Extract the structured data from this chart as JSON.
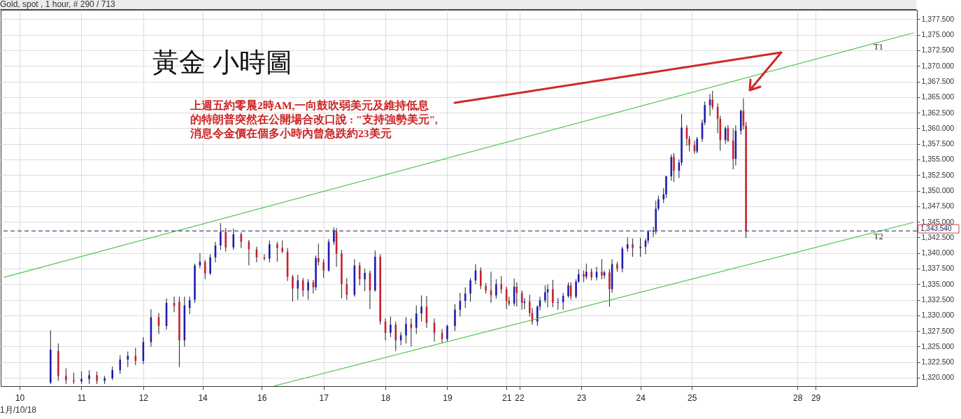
{
  "chart_data": {
    "type": "candlestick",
    "title": "黃金 小時圖",
    "annotations": [
      "Gold, spot , 1 hour, # 290 / 713",
      "上週五約零晨2時AM,一向鼓吹弱美元及維持低息的特朗普突然在公開場合改口說 : \"支持強勢美元\",消息令金價在個多小時內曾急跌約23美元",
      "1月/10/18"
    ],
    "categories": [
      null,
      null,
      null,
      null,
      null,
      null,
      "10",
      null,
      null,
      null,
      null,
      null,
      null,
      null,
      null,
      null,
      null,
      null,
      null,
      null,
      null,
      null,
      null,
      null,
      null,
      null,
      null,
      null,
      null,
      null,
      "11",
      null,
      null,
      null,
      null,
      null,
      null,
      null,
      null,
      null,
      null,
      null,
      null,
      null,
      null,
      null,
      null,
      null,
      null,
      null,
      null,
      null,
      null,
      null,
      "12",
      null,
      null,
      null,
      null,
      null,
      null,
      null,
      null,
      null,
      null,
      null,
      null,
      null,
      null,
      null,
      null,
      null,
      null,
      null,
      null,
      null,
      null,
      "14",
      null,
      null,
      null,
      null,
      null,
      null,
      null,
      null,
      null,
      null,
      null,
      null,
      null,
      null,
      null,
      null,
      null,
      null,
      null,
      null,
      null,
      null,
      "16",
      null,
      null,
      null,
      null,
      null,
      null,
      null,
      null,
      null,
      null,
      null,
      null,
      null,
      null,
      null,
      null,
      null,
      null,
      null,
      null,
      null,
      null,
      null,
      "17",
      null,
      null,
      null,
      null,
      null,
      null,
      null,
      null,
      null,
      null,
      null,
      null,
      null,
      null,
      null,
      null,
      null,
      null,
      null,
      null,
      null,
      null,
      null,
      "18",
      null,
      null,
      null,
      null,
      null,
      null,
      null,
      null,
      null,
      null,
      null,
      null,
      null,
      null,
      null,
      null,
      null,
      null,
      null,
      null,
      null,
      null,
      null,
      "19",
      null,
      null,
      null,
      null,
      null,
      null,
      null,
      null,
      null,
      null,
      null,
      null,
      null,
      null,
      null,
      null,
      null,
      null,
      null,
      null,
      null,
      null,
      "21",
      null,
      null,
      null,
      null,
      "22",
      null,
      null,
      null,
      null,
      null,
      null,
      null,
      null,
      null,
      null,
      null,
      null,
      null,
      null,
      null,
      null,
      null,
      null,
      null,
      null,
      null,
      null,
      null,
      "23",
      null,
      null,
      null,
      null,
      null,
      null,
      null,
      null,
      null,
      null,
      null,
      null,
      null,
      null,
      null,
      null,
      null,
      null,
      null,
      null,
      null,
      null,
      "24",
      null,
      null,
      null,
      null,
      null,
      null,
      null,
      null,
      null,
      null,
      null,
      null,
      null,
      null,
      null,
      null,
      null,
      null,
      null,
      "25",
      null,
      null,
      null,
      null,
      null,
      null,
      null,
      null,
      null,
      null,
      null,
      null,
      null,
      null,
      null,
      null,
      null,
      null,
      null,
      null,
      null,
      null,
      null,
      null,
      null,
      null,
      null,
      null,
      null,
      null,
      null,
      null,
      null,
      null,
      null,
      null,
      null,
      null,
      null,
      null,
      "28",
      null,
      null,
      null,
      null,
      null,
      null,
      "29",
      null,
      null,
      null,
      null,
      null,
      null,
      null,
      null,
      null,
      null,
      null,
      null,
      null,
      null,
      null,
      null,
      null,
      null,
      null,
      null,
      null,
      null,
      null,
      null,
      null,
      null,
      null,
      null,
      null,
      null,
      null,
      null,
      null,
      null,
      null,
      null,
      null,
      null
    ],
    "ohlc": [
      null,
      null,
      null,
      null,
      null,
      null,
      null,
      null,
      null,
      null,
      null,
      null,
      null,
      null,
      null,
      null,
      null,
      null,
      [
        1319.2,
        1327.6,
        1319.0,
        1324.5
      ],
      null,
      null,
      [
        1324.3,
        1325.5,
        1319.5,
        1320.3
      ],
      null,
      null,
      [
        1320.3,
        1321.5,
        1319.0,
        1319.6
      ],
      null,
      null,
      [
        1319.6,
        1320.8,
        1319.0,
        1319.4
      ],
      null,
      null,
      [
        1319.4,
        1321.0,
        1319.0,
        1319.8
      ],
      null,
      null,
      [
        1319.8,
        1321.2,
        1319.0,
        1320.4
      ],
      null,
      null,
      [
        1320.4,
        1321.0,
        1319.0,
        1319.5
      ],
      null,
      null,
      [
        1319.5,
        1320.3,
        1319.0,
        1319.9
      ],
      null,
      null,
      [
        1319.9,
        1321.8,
        1319.6,
        1321.2
      ],
      null,
      null,
      [
        1321.2,
        1323.6,
        1320.6,
        1322.9
      ],
      null,
      null,
      [
        1322.9,
        1324.2,
        1321.7,
        1323.5
      ],
      null,
      null,
      [
        1323.5,
        1324.8,
        1322.0,
        1322.7
      ],
      null,
      null,
      [
        1322.7,
        1326.5,
        1322.2,
        1325.7
      ],
      null,
      null,
      [
        1325.7,
        1331.0,
        1325.0,
        1329.7
      ],
      null,
      null,
      [
        1329.7,
        1330.4,
        1327.0,
        1328.3
      ],
      null,
      null,
      [
        1328.3,
        1332.7,
        1327.7,
        1332.0
      ],
      null,
      null,
      [
        1332.0,
        1333.0,
        1330.5,
        1331.5
      ],
      null,
      [
        1332.2,
        1333.0,
        1321.7,
        1326.0
      ],
      null,
      [
        1326.0,
        1333.0,
        1325.0,
        1331.6
      ],
      null,
      [
        1331.2,
        1333.0,
        1330.2,
        1332.4
      ],
      null,
      [
        1332.5,
        1338.3,
        1332.0,
        1338.0
      ],
      null,
      [
        1338.0,
        1340.0,
        1337.6,
        1338.6
      ],
      null,
      [
        1338.6,
        1338.9,
        1335.8,
        1336.7
      ],
      null,
      [
        1336.7,
        1339.8,
        1336.5,
        1339.3
      ],
      null,
      [
        1339.3,
        1341.8,
        1338.5,
        1341.2
      ],
      null,
      [
        1341.2,
        1344.8,
        1340.5,
        1343.4
      ],
      null,
      [
        1343.4,
        1344.0,
        1340.2,
        1340.9
      ],
      null,
      null,
      [
        1340.9,
        1343.9,
        1340.5,
        1343.0
      ],
      null,
      null,
      [
        1343.0,
        1343.3,
        1340.8,
        1341.8
      ],
      null,
      null,
      [
        1341.8,
        1342.1,
        1338.0,
        1340.6
      ],
      null,
      null,
      [
        1340.6,
        1341.0,
        1338.5,
        1339.3
      ],
      null,
      null,
      [
        1339.3,
        1339.8,
        1338.8,
        1339.1
      ],
      null,
      [
        1339.1,
        1342.0,
        1338.5,
        1341.4
      ],
      null,
      null,
      [
        1341.4,
        1341.8,
        1338.6,
        1340.8
      ],
      null,
      [
        1340.8,
        1342.0,
        1340.0,
        1340.2
      ],
      null,
      [
        1340.2,
        1340.8,
        1335.5,
        1336.2
      ],
      null,
      [
        1336.2,
        1336.5,
        1332.2,
        1334.3
      ],
      null,
      [
        1334.3,
        1336.5,
        1332.5,
        1335.6
      ],
      null,
      [
        1335.6,
        1336.0,
        1333.0,
        1334.0
      ],
      null,
      [
        1334.0,
        1335.8,
        1332.5,
        1335.3
      ],
      null,
      [
        1335.3,
        1335.7,
        1333.5,
        1334.5
      ],
      [
        1334.5,
        1339.6,
        1334.0,
        1339.2
      ],
      [
        1339.2,
        1341.5,
        1338.0,
        1338.5
      ],
      null,
      [
        1338.5,
        1339.0,
        1336.0,
        1337.2
      ],
      null,
      [
        1337.2,
        1342.2,
        1337.0,
        1341.8
      ],
      null,
      [
        1341.8,
        1344.1,
        1341.3,
        1343.5
      ],
      [
        1343.5,
        1344.0,
        1337.8,
        1339.9
      ],
      null,
      [
        1339.9,
        1340.5,
        1332.7,
        1335.0
      ],
      null,
      [
        1335.0,
        1336.0,
        1332.5,
        1333.3
      ],
      null,
      null,
      [
        1333.3,
        1339.0,
        1333.0,
        1338.0
      ],
      null,
      [
        1338.0,
        1338.5,
        1334.8,
        1335.8
      ],
      null,
      [
        1335.8,
        1337.5,
        1333.9,
        1336.8
      ],
      null,
      [
        1336.8,
        1337.2,
        1331.0,
        1334.0
      ],
      null,
      [
        1334.0,
        1340.4,
        1333.8,
        1339.4
      ],
      null,
      [
        1339.4,
        1339.8,
        1328.5,
        1329.0
      ],
      null,
      [
        1329.0,
        1329.5,
        1326.0,
        1327.2
      ],
      null,
      [
        1327.2,
        1329.8,
        1326.5,
        1328.5
      ],
      null,
      [
        1328.5,
        1329.0,
        1324.3,
        1326.0
      ],
      null,
      [
        1326.0,
        1327.3,
        1325.2,
        1326.8
      ],
      null,
      [
        1326.8,
        1329.7,
        1325.5,
        1328.6
      ],
      null,
      [
        1328.6,
        1329.5,
        1325.0,
        1328.0
      ],
      null,
      [
        1328.0,
        1331.6,
        1327.0,
        1330.3
      ],
      null,
      [
        1330.3,
        1333.2,
        1329.0,
        1331.4
      ],
      null,
      [
        1331.4,
        1333.1,
        1328.0,
        1328.8
      ],
      null,
      null,
      [
        1328.8,
        1329.5,
        1325.8,
        1327.2
      ],
      null,
      null,
      [
        1327.2,
        1327.8,
        1325.6,
        1326.2
      ],
      null,
      [
        1326.2,
        1328.5,
        1325.8,
        1328.3
      ],
      null,
      null,
      [
        1328.3,
        1331.8,
        1327.5,
        1330.9
      ],
      null,
      [
        1330.9,
        1333.6,
        1329.8,
        1332.3
      ],
      null,
      [
        1332.3,
        1334.5,
        1331.2,
        1333.5
      ],
      null,
      [
        1333.5,
        1336.0,
        1332.2,
        1335.6
      ],
      null,
      [
        1335.6,
        1338.2,
        1335.0,
        1337.2
      ],
      null,
      [
        1337.2,
        1337.7,
        1334.2,
        1334.7
      ],
      null,
      [
        1334.7,
        1335.2,
        1333.5,
        1334.0
      ],
      null,
      [
        1334.0,
        1337.0,
        1332.0,
        1333.2
      ],
      null,
      [
        1333.2,
        1335.8,
        1332.7,
        1335.0
      ],
      null,
      [
        1335.0,
        1336.3,
        1333.5,
        1334.2
      ],
      null,
      [
        1334.2,
        1334.6,
        1331.0,
        1332.3
      ],
      [
        1332.3,
        1333.0,
        1331.5,
        1331.9
      ],
      null,
      [
        1331.9,
        1335.9,
        1331.5,
        1334.6
      ],
      [
        1334.6,
        1335.3,
        1331.4,
        1333.6
      ],
      null,
      [
        1333.6,
        1334.0,
        1330.9,
        1332.0
      ],
      [
        1332.0,
        1332.8,
        1331.0,
        1332.2
      ],
      null,
      [
        1332.2,
        1333.3,
        1329.8,
        1330.4
      ],
      [
        1330.4,
        1331.2,
        1328.5,
        1329.0
      ],
      null,
      [
        1329.0,
        1331.6,
        1328.3,
        1331.4
      ],
      [
        1331.4,
        1333.0,
        1330.8,
        1332.4
      ],
      null,
      [
        1332.4,
        1334.8,
        1332.0,
        1333.7
      ],
      [
        1333.7,
        1335.0,
        1331.3,
        1334.2
      ],
      null,
      [
        1334.2,
        1335.7,
        1331.3,
        1332.0
      ],
      null,
      [
        1332.0,
        1332.8,
        1330.9,
        1332.1
      ],
      null,
      [
        1332.1,
        1333.6,
        1330.9,
        1333.1
      ],
      null,
      [
        1333.1,
        1335.3,
        1332.8,
        1334.8
      ],
      [
        1334.8,
        1335.3,
        1332.5,
        1333.0
      ],
      null,
      [
        1333.0,
        1335.8,
        1332.7,
        1335.4
      ],
      [
        1335.4,
        1337.4,
        1335.2,
        1336.6
      ],
      null,
      [
        1336.6,
        1337.2,
        1335.3,
        1336.2
      ],
      [
        1336.2,
        1338.3,
        1335.8,
        1337.0
      ],
      null,
      [
        1337.0,
        1337.5,
        1335.6,
        1336.1
      ],
      null,
      [
        1336.1,
        1337.8,
        1335.6,
        1337.0
      ],
      null,
      [
        1337.0,
        1339.0,
        1335.8,
        1336.4
      ],
      [
        1336.4,
        1337.2,
        1335.9,
        1336.9
      ],
      null,
      [
        1336.9,
        1337.4,
        1331.4,
        1334.2
      ],
      [
        1334.2,
        1339.0,
        1333.6,
        1338.2
      ],
      null,
      [
        1338.2,
        1338.6,
        1337.0,
        1337.5
      ],
      null,
      [
        1337.5,
        1341.0,
        1336.9,
        1340.7
      ],
      null,
      [
        1340.7,
        1342.5,
        1340.2,
        1341.4
      ],
      null,
      [
        1341.4,
        1342.3,
        1339.4,
        1340.8
      ],
      null,
      null,
      [
        1340.8,
        1342.4,
        1339.4,
        1341.0
      ],
      null,
      [
        1341.0,
        1342.3,
        1339.8,
        1342.0
      ],
      [
        1342.0,
        1343.6,
        1341.5,
        1343.4
      ],
      null,
      [
        1343.4,
        1344.2,
        1342.6,
        1343.6
      ],
      [
        1343.6,
        1348.4,
        1343.0,
        1347.1
      ],
      [
        1347.1,
        1349.2,
        1346.8,
        1348.6
      ],
      null,
      [
        1348.6,
        1350.4,
        1348.0,
        1349.4
      ],
      [
        1349.4,
        1352.4,
        1348.8,
        1352.3
      ],
      null,
      [
        1352.3,
        1355.8,
        1351.6,
        1355.4
      ],
      [
        1355.4,
        1356.0,
        1351.4,
        1353.2
      ],
      null,
      [
        1353.2,
        1355.0,
        1352.0,
        1354.5
      ],
      [
        1354.5,
        1362.3,
        1354.0,
        1360.1
      ],
      null,
      [
        1360.1,
        1360.5,
        1357.2,
        1358.3
      ],
      [
        1358.3,
        1358.8,
        1356.3,
        1357.3
      ],
      null,
      [
        1357.3,
        1358.0,
        1355.9,
        1356.3
      ],
      [
        1356.3,
        1358.6,
        1356.0,
        1358.3
      ],
      null,
      [
        1358.3,
        1361.4,
        1357.8,
        1360.9
      ],
      [
        1360.9,
        1364.3,
        1360.5,
        1363.7
      ],
      null,
      [
        1363.7,
        1365.5,
        1362.0,
        1364.6
      ],
      [
        1364.6,
        1366.0,
        1363.0,
        1363.4
      ],
      null,
      [
        1363.4,
        1364.0,
        1359.2,
        1361.5
      ],
      [
        1361.5,
        1362.0,
        1356.4,
        1358.1
      ],
      null,
      [
        1358.1,
        1360.3,
        1357.5,
        1360.0
      ],
      [
        1360.0,
        1360.5,
        1357.8,
        1358.0
      ],
      null,
      [
        1358.0,
        1360.0,
        1353.4,
        1355.1
      ],
      [
        1355.1,
        1360.5,
        1354.0,
        1359.6
      ],
      null,
      [
        1359.6,
        1363.0,
        1359.0,
        1362.8
      ],
      [
        1362.8,
        1364.8,
        1359.8,
        1360.4
      ],
      [
        1360.4,
        1361.0,
        1342.4,
        1343.54
      ],
      null,
      null,
      null,
      null,
      null,
      null,
      null,
      null,
      null,
      null,
      null,
      null,
      null,
      null,
      null,
      null,
      null,
      null,
      null,
      null,
      null,
      null,
      null,
      null,
      null,
      null,
      null,
      null,
      null,
      null,
      null,
      null,
      null,
      null,
      null,
      null,
      null,
      null,
      null,
      null,
      null,
      null,
      null,
      null,
      null,
      null,
      null,
      null,
      null,
      null,
      null,
      null,
      null,
      null,
      null,
      null,
      null,
      null,
      null,
      null,
      null,
      null,
      null,
      null,
      null
    ],
    "colors": [
      null,
      null,
      null,
      null,
      null,
      null,
      null,
      null,
      null,
      null,
      null,
      null,
      null,
      null,
      null,
      null,
      null,
      null,
      "#1c1cb4",
      null,
      null,
      "#c8202c",
      null,
      null,
      "#c8202c",
      null,
      null,
      "#c8202c",
      null,
      null,
      "#1c1cb4",
      null,
      null,
      "#1c1cb4",
      null,
      null,
      "#c8202c",
      null,
      null,
      "#1c1cb4",
      null,
      null,
      "#1c1cb4",
      null,
      null,
      "#1c1cb4",
      null,
      null,
      "#1c1cb4",
      null,
      null,
      "#c8202c",
      null,
      null,
      "#1c1cb4",
      null,
      null,
      "#1c1cb4",
      null,
      null,
      "#c8202c",
      null,
      null,
      "#1c1cb4",
      null,
      null,
      "#c8202c",
      null,
      "#c8202c",
      null,
      "#1c1cb4",
      null,
      "#1c1cb4",
      null,
      "#1c1cb4",
      null,
      "#1c1cb4",
      null,
      "#c8202c",
      null,
      "#1c1cb4",
      null,
      "#1c1cb4",
      null,
      "#1c1cb4",
      null,
      "#c8202c",
      null,
      null,
      "#1c1cb4",
      null,
      null,
      "#c8202c",
      null,
      null,
      "#c8202c",
      null,
      null,
      "#c8202c",
      null,
      null,
      "#c8202c",
      null,
      "#1c1cb4",
      null,
      null,
      "#c8202c",
      null,
      "#c8202c",
      null,
      "#c8202c",
      null,
      "#c8202c",
      null,
      "#1c1cb4",
      null,
      "#c8202c",
      null,
      "#1c1cb4",
      null,
      "#c8202c",
      "#1c1cb4",
      "#c8202c",
      null,
      "#c8202c",
      null,
      "#1c1cb4",
      null,
      "#1c1cb4",
      "#c8202c",
      null,
      "#c8202c",
      null,
      "#c8202c",
      null,
      null,
      "#1c1cb4",
      null,
      "#c8202c",
      null,
      "#1c1cb4",
      null,
      "#c8202c",
      null,
      "#1c1cb4",
      null,
      "#c8202c",
      null,
      "#c8202c",
      null,
      "#1c1cb4",
      null,
      "#c8202c",
      null,
      "#1c1cb4",
      null,
      "#1c1cb4",
      null,
      "#c8202c",
      null,
      "#1c1cb4",
      null,
      "#1c1cb4",
      null,
      "#c8202c",
      null,
      null,
      "#c8202c",
      null,
      null,
      "#c8202c",
      null,
      "#1c1cb4",
      null,
      null,
      "#1c1cb4",
      null,
      "#1c1cb4",
      null,
      "#1c1cb4",
      null,
      "#1c1cb4",
      null,
      "#1c1cb4",
      null,
      "#c8202c",
      null,
      "#c8202c",
      null,
      "#c8202c",
      null,
      "#1c1cb4",
      null,
      "#c8202c",
      null,
      "#c8202c",
      "#c8202c",
      null,
      "#1c1cb4",
      "#c8202c",
      null,
      "#c8202c",
      "#1c1cb4",
      null,
      "#c8202c",
      "#c8202c",
      null,
      "#1c1cb4",
      "#1c1cb4",
      null,
      "#1c1cb4",
      "#1c1cb4",
      null,
      "#c8202c",
      null,
      "#1c1cb4",
      null,
      "#1c1cb4",
      null,
      "#1c1cb4",
      "#c8202c",
      null,
      "#1c1cb4",
      "#1c1cb4",
      null,
      "#c8202c",
      "#1c1cb4",
      null,
      "#c8202c",
      null,
      "#1c1cb4",
      null,
      "#c8202c",
      "#1c1cb4",
      null,
      "#c8202c",
      "#1c1cb4",
      null,
      "#c8202c",
      null,
      "#1c1cb4",
      null,
      "#1c1cb4",
      null,
      "#c8202c",
      null,
      null,
      "#1c1cb4",
      null,
      "#1c1cb4",
      "#1c1cb4",
      null,
      "#1c1cb4",
      "#1c1cb4",
      "#1c1cb4",
      null,
      "#1c1cb4",
      "#1c1cb4",
      null,
      "#1c1cb4",
      "#c8202c",
      null,
      "#1c1cb4",
      "#1c1cb4",
      null,
      "#c8202c",
      "#c8202c",
      null,
      "#c8202c",
      "#1c1cb4",
      null,
      "#1c1cb4",
      "#1c1cb4",
      null,
      "#1c1cb4",
      "#c8202c",
      null,
      "#c8202c",
      "#c8202c",
      null,
      "#1c1cb4",
      "#c8202c",
      null,
      "#c8202c",
      "#1c1cb4",
      null,
      "#1c1cb4",
      "#c8202c",
      "#c8202c",
      null,
      null,
      null,
      null,
      null,
      null,
      null,
      null,
      null,
      null,
      null,
      null,
      null,
      null,
      null,
      null,
      null,
      null,
      null,
      null,
      null,
      null,
      null,
      null,
      null,
      null,
      null,
      null,
      null,
      null,
      null,
      null,
      null,
      null,
      null,
      null,
      null,
      null,
      null,
      null,
      null,
      null,
      null,
      null,
      null,
      null,
      null,
      null,
      null,
      null,
      null,
      null,
      null,
      null,
      null,
      null,
      null,
      null,
      null,
      null,
      null,
      null,
      null,
      null,
      null
    ],
    "series": [
      {
        "name": "T1",
        "type": "line",
        "color": "#4fc84f",
        "values": [
          1336.1,
          null,
          null,
          null,
          null,
          null,
          null,
          null,
          null,
          null,
          null,
          null,
          null,
          null,
          null,
          null,
          null,
          null,
          null,
          null,
          null,
          null,
          null,
          null,
          null,
          null,
          null,
          null,
          null,
          null,
          null,
          null,
          null,
          null,
          null,
          null,
          null,
          null,
          null,
          null,
          null,
          null,
          null,
          null,
          null,
          null,
          null,
          null,
          null,
          null,
          null,
          null,
          null,
          null,
          null,
          null,
          null,
          null,
          null,
          null,
          null,
          null,
          null,
          null,
          null,
          null,
          null,
          null,
          null,
          null,
          null,
          null,
          null,
          null,
          null,
          null,
          null,
          null,
          null,
          null,
          null,
          null,
          null,
          null,
          null,
          null,
          null,
          null,
          null,
          null,
          null,
          null,
          null,
          null,
          null,
          null,
          null,
          null,
          null,
          null,
          null,
          null,
          null,
          null,
          null,
          null,
          null,
          null,
          null,
          null,
          null,
          null,
          null,
          null,
          null,
          null,
          null,
          null,
          null,
          null,
          null,
          null,
          null,
          null,
          null,
          null,
          null,
          null,
          null,
          null,
          null,
          null,
          null,
          null,
          null,
          null,
          null,
          null,
          null,
          null,
          null,
          null,
          null,
          null,
          null,
          null,
          null,
          null,
          null,
          null,
          null,
          null,
          null,
          null,
          null,
          null,
          null,
          null,
          null,
          null,
          null,
          null,
          null,
          null,
          null,
          null,
          null,
          null,
          null,
          null,
          null,
          null,
          null,
          null,
          null,
          null,
          null,
          null,
          null,
          null,
          null,
          null,
          null,
          null,
          null,
          null,
          null,
          null,
          null,
          null,
          null,
          null,
          null,
          null,
          null,
          null,
          null,
          null,
          null,
          null,
          null,
          null,
          null,
          null,
          null,
          null,
          null,
          null,
          null,
          null,
          null,
          null,
          null,
          null,
          null,
          null,
          null,
          null,
          null,
          null,
          null,
          null,
          null,
          null,
          null,
          null,
          null,
          null,
          null,
          null,
          null,
          null,
          null,
          null,
          null,
          null,
          null,
          null,
          null,
          null,
          null,
          null,
          null,
          null,
          null,
          null,
          null,
          null,
          null,
          null,
          null,
          null,
          null,
          null,
          null,
          null,
          null,
          null,
          null,
          null,
          null,
          null,
          null,
          null,
          null,
          null,
          null,
          null,
          null,
          null,
          null,
          null,
          null,
          null,
          null,
          null,
          null,
          null,
          null,
          null,
          null,
          null,
          null,
          null,
          null,
          null,
          null,
          null,
          null,
          null,
          null,
          null,
          null,
          null,
          null,
          null,
          null,
          null,
          null,
          null,
          null,
          null,
          null,
          null,
          null,
          null,
          null,
          null,
          null,
          null,
          null,
          null,
          null,
          null,
          null,
          null,
          null,
          null,
          null,
          null,
          null,
          null,
          null,
          null,
          null,
          null,
          null,
          null,
          null,
          null,
          null,
          null,
          null,
          null,
          null,
          null,
          null,
          null,
          null,
          null,
          null,
          null,
          null,
          null,
          null,
          null,
          null,
          null,
          null,
          null,
          null,
          null,
          null,
          1375.3
        ]
      },
      {
        "name": "T2",
        "type": "line",
        "color": "#4fc84f",
        "values": [
          null,
          null,
          null,
          null,
          null,
          null,
          null,
          null,
          null,
          null,
          null,
          null,
          null,
          null,
          null,
          null,
          null,
          null,
          null,
          null,
          null,
          null,
          null,
          null,
          null,
          null,
          null,
          null,
          null,
          null,
          null,
          null,
          null,
          null,
          null,
          null,
          null,
          null,
          null,
          null,
          null,
          null,
          null,
          null,
          null,
          null,
          null,
          null,
          null,
          null,
          null,
          null,
          null,
          null,
          null,
          null,
          null,
          null,
          null,
          null,
          null,
          null,
          null,
          null,
          null,
          null,
          null,
          null,
          null,
          null,
          null,
          null,
          null,
          null,
          null,
          null,
          null,
          null,
          null,
          null,
          null,
          null,
          null,
          null,
          null,
          null,
          null,
          null,
          null,
          null,
          null,
          null,
          null,
          null,
          null,
          null,
          null,
          null,
          null,
          null,
          null,
          null,
          null,
          null,
          null,
          1318.7,
          null,
          null,
          null,
          null,
          null,
          null,
          null,
          null,
          null,
          null,
          null,
          null,
          null,
          null,
          null,
          null,
          null,
          null,
          null,
          null,
          null,
          null,
          null,
          null,
          null,
          null,
          null,
          null,
          null,
          null,
          null,
          null,
          null,
          null,
          null,
          null,
          null,
          null,
          null,
          null,
          null,
          null,
          null,
          null,
          null,
          null,
          null,
          null,
          null,
          null,
          null,
          null,
          null,
          null,
          null,
          null,
          null,
          null,
          null,
          null,
          null,
          null,
          null,
          null,
          null,
          null,
          null,
          null,
          null,
          null,
          null,
          null,
          null,
          null,
          null,
          null,
          null,
          null,
          null,
          null,
          null,
          null,
          null,
          null,
          null,
          null,
          null,
          null,
          null,
          null,
          null,
          null,
          null,
          null,
          null,
          null,
          null,
          null,
          null,
          null,
          null,
          null,
          null,
          null,
          null,
          null,
          null,
          null,
          null,
          null,
          null,
          null,
          null,
          null,
          null,
          null,
          null,
          null,
          null,
          null,
          null,
          null,
          null,
          null,
          null,
          null,
          null,
          null,
          null,
          null,
          null,
          null,
          null,
          null,
          null,
          null,
          null,
          null,
          null,
          null,
          null,
          null,
          null,
          null,
          null,
          null,
          null,
          null,
          null,
          null,
          null,
          null,
          null,
          null,
          null,
          null,
          null,
          null,
          null,
          null,
          null,
          null,
          null,
          null,
          null,
          null,
          null,
          null,
          null,
          null,
          null,
          null,
          null,
          null,
          null,
          null,
          null,
          null,
          null,
          null,
          null,
          null,
          null,
          null,
          null,
          null,
          null,
          null,
          null,
          null,
          null,
          null,
          null,
          null,
          null,
          null,
          null,
          null,
          null,
          null,
          null,
          null,
          null,
          null,
          null,
          null,
          null,
          null,
          null,
          null,
          null,
          null,
          null,
          null,
          null,
          null,
          null,
          null,
          null,
          null,
          null,
          null,
          null,
          null,
          null,
          null,
          null,
          null,
          null,
          null,
          null,
          null,
          null,
          null,
          null,
          null,
          null,
          null,
          null,
          null,
          null,
          null,
          null,
          null,
          null,
          null,
          null,
          1344.9
        ]
      }
    ],
    "ref_lines": [
      {
        "axis": "y",
        "value": 1343.54,
        "label": "1,343.540",
        "color": "#1a1a5e",
        "line_style": "dashed"
      }
    ],
    "ylim": [
      1318.65,
      1379.0
    ],
    "yticks": [
      {
        "value": 1320,
        "label": "1,320.000"
      },
      {
        "value": 1322.5,
        "label": "1,322.500"
      },
      {
        "value": 1325,
        "label": "1,325.000"
      },
      {
        "value": 1327.5,
        "label": "1,327.500"
      },
      {
        "value": 1330,
        "label": "1,330.000"
      },
      {
        "value": 1332.5,
        "label": "1,332.500"
      },
      {
        "value": 1335,
        "label": "1,335.000"
      },
      {
        "value": 1337.5,
        "label": "1,337.500"
      },
      {
        "value": 1340,
        "label": "1,340.000"
      },
      {
        "value": 1342.5,
        "label": "1,342.500"
      },
      {
        "value": 1345,
        "label": "1,345.000"
      },
      {
        "value": 1347.5,
        "label": "1,347.500"
      },
      {
        "value": 1350,
        "label": "1,350.000"
      },
      {
        "value": 1352.5,
        "label": "1,352.500"
      },
      {
        "value": 1355,
        "label": "1,355.000"
      },
      {
        "value": 1357.5,
        "label": "1,357.500"
      },
      {
        "value": 1360,
        "label": "1,360.000"
      },
      {
        "value": 1362.5,
        "label": "1,362.500"
      },
      {
        "value": 1365,
        "label": "1,365.000"
      },
      {
        "value": 1367.5,
        "label": "1,367.500"
      },
      {
        "value": 1370,
        "label": "1,370.000"
      },
      {
        "value": 1372.5,
        "label": "1,372.500"
      },
      {
        "value": 1375,
        "label": "1,375.000"
      },
      {
        "value": 1377.5,
        "label": "1,377.500"
      }
    ],
    "grid": true
  }
}
